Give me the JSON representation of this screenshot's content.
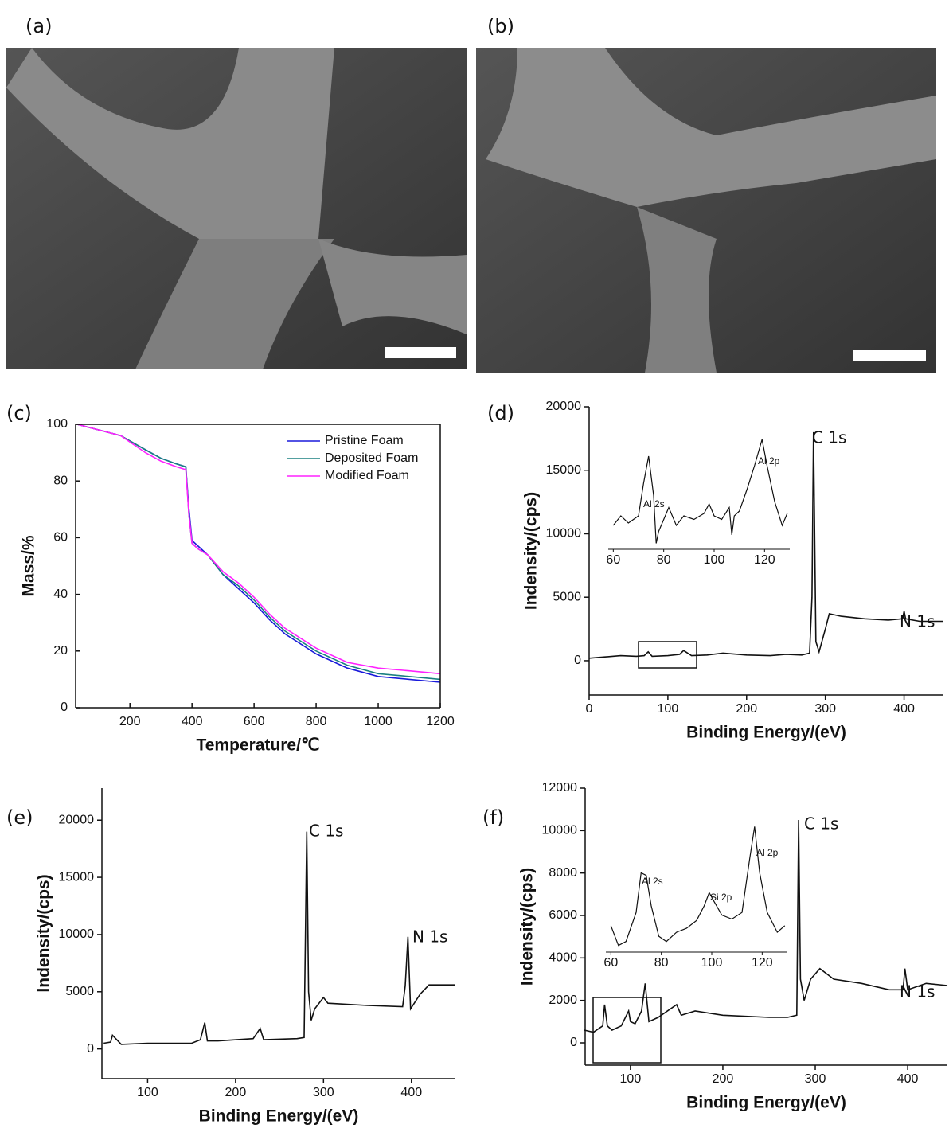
{
  "images": [
    {
      "label": "(a)"
    },
    {
      "label": "(b)"
    }
  ],
  "chart_data": [
    {
      "type": "line",
      "label": "(c)",
      "xlabel": "Temperature/℃",
      "ylabel": "Mass/%",
      "xlim": [
        25,
        1200
      ],
      "xticks": [
        200,
        400,
        600,
        800,
        1000,
        1200
      ],
      "ylim": [
        0,
        100
      ],
      "yticks": [
        0,
        20,
        40,
        60,
        80,
        100
      ],
      "legend": "upper right",
      "x": [
        30,
        100,
        170,
        250,
        300,
        350,
        380,
        390,
        400,
        420,
        450,
        500,
        550,
        600,
        650,
        700,
        800,
        900,
        1000,
        1100,
        1200
      ],
      "series": [
        {
          "name": "Pristine Foam",
          "color": "#1a1adb",
          "values": [
            100,
            98,
            96,
            91,
            88,
            86,
            85,
            70,
            59,
            57,
            54,
            47,
            42,
            37,
            31,
            26,
            19,
            14,
            11,
            10,
            9
          ]
        },
        {
          "name": "Deposited Foam",
          "color": "#1a8080",
          "values": [
            100,
            98,
            96,
            91,
            88,
            86,
            85,
            68,
            58,
            56,
            54,
            47,
            43,
            38,
            32,
            27,
            20,
            15,
            12,
            11,
            10
          ]
        },
        {
          "name": "Modified Foam",
          "color": "#ff22ff",
          "values": [
            100,
            98,
            96,
            90,
            87,
            85,
            84,
            68,
            58,
            56,
            54,
            48,
            44,
            39,
            33,
            28,
            21,
            16,
            14,
            13,
            12
          ]
        }
      ]
    },
    {
      "type": "line",
      "label": "(d)",
      "xlabel": "Binding Energy/(eV)",
      "ylabel": "Indensity/(cps)",
      "xlim": [
        0,
        450
      ],
      "xticks": [
        0,
        100,
        200,
        300,
        400
      ],
      "ylim": [
        -2700,
        20000
      ],
      "yticks": [
        0,
        5000,
        10000,
        15000,
        20000
      ],
      "annotations": [
        "C 1s",
        "N 1s"
      ],
      "x": [
        0,
        20,
        40,
        60,
        70,
        75,
        80,
        100,
        115,
        120,
        130,
        150,
        170,
        200,
        230,
        250,
        270,
        280,
        283,
        285,
        288,
        292,
        300,
        305,
        320,
        350,
        380,
        398,
        400,
        402,
        420,
        450
      ],
      "series": [
        {
          "color": "#111111",
          "values": [
            200,
            300,
            400,
            350,
            400,
            700,
            350,
            400,
            500,
            800,
            400,
            450,
            600,
            450,
            400,
            500,
            450,
            600,
            5000,
            18000,
            1500,
            700,
            2500,
            3700,
            3500,
            3300,
            3200,
            3300,
            3900,
            3300,
            3100,
            3100
          ]
        }
      ],
      "inset": {
        "type": "line",
        "xlim": [
          58,
          130
        ],
        "xticks": [
          60,
          80,
          100,
          120
        ],
        "ylim": [
          0,
          100
        ],
        "annotations": [
          "Al 2s",
          "Al 2p"
        ],
        "x": [
          60,
          63,
          66,
          70,
          72,
          74,
          76,
          77,
          78,
          80,
          82,
          85,
          88,
          92,
          96,
          98,
          100,
          103,
          106,
          107,
          108,
          110,
          113,
          116,
          119,
          121,
          124,
          127,
          129
        ],
        "series": [
          {
            "color": "#111111",
            "values": [
              20,
              28,
              22,
              28,
              55,
              78,
              45,
              5,
              15,
              25,
              35,
              20,
              28,
              25,
              30,
              38,
              28,
              25,
              35,
              12,
              28,
              32,
              50,
              70,
              92,
              70,
              40,
              20,
              30
            ]
          }
        ]
      }
    },
    {
      "type": "line",
      "label": "(e)",
      "xlabel": "Binding Energy/(eV)",
      "ylabel": "Indensity/(cps)",
      "xlim": [
        48,
        450
      ],
      "xticks": [
        100,
        200,
        300,
        400
      ],
      "ylim": [
        -2600,
        22800
      ],
      "yticks": [
        0,
        5000,
        10000,
        15000,
        20000
      ],
      "annotations": [
        "C 1s",
        "N 1s"
      ],
      "x": [
        50,
        58,
        60,
        70,
        100,
        150,
        160,
        165,
        168,
        180,
        220,
        228,
        232,
        270,
        278,
        281,
        283,
        286,
        290,
        300,
        305,
        350,
        390,
        393,
        396,
        399,
        410,
        420,
        450
      ],
      "series": [
        {
          "color": "#111111",
          "values": [
            500,
            600,
            1200,
            400,
            500,
            500,
            800,
            2300,
            700,
            700,
            900,
            1800,
            800,
            900,
            1000,
            19000,
            5000,
            2500,
            3500,
            4500,
            4000,
            3800,
            3700,
            5500,
            9800,
            3500,
            4800,
            5600,
            5600
          ]
        }
      ]
    },
    {
      "type": "line",
      "label": "(f)",
      "xlabel": "Binding Energy/(eV)",
      "ylabel": "Indensity/(cps)",
      "xlim": [
        51,
        443
      ],
      "xticks": [
        100,
        200,
        300,
        400
      ],
      "ylim": [
        -1050,
        12000
      ],
      "yticks": [
        0,
        2000,
        4000,
        6000,
        8000,
        10000,
        12000
      ],
      "annotations": [
        "C 1s",
        "N 1s"
      ],
      "x": [
        50,
        60,
        70,
        72,
        75,
        80,
        90,
        98,
        100,
        105,
        112,
        116,
        120,
        130,
        150,
        155,
        170,
        200,
        250,
        270,
        280,
        282,
        284,
        288,
        295,
        305,
        320,
        350,
        380,
        395,
        397,
        400,
        420,
        443
      ],
      "series": [
        {
          "color": "#111111",
          "values": [
            600,
            500,
            800,
            1800,
            800,
            600,
            800,
            1500,
            1000,
            900,
            1500,
            2800,
            1000,
            1200,
            1800,
            1300,
            1500,
            1300,
            1200,
            1200,
            1300,
            10500,
            3000,
            2000,
            3000,
            3500,
            3000,
            2800,
            2500,
            2500,
            3500,
            2500,
            2800,
            2700
          ]
        }
      ],
      "inset": {
        "type": "line",
        "xlim": [
          58,
          130
        ],
        "xticks": [
          60,
          80,
          100,
          120
        ],
        "ylim": [
          0,
          100
        ],
        "annotations": [
          "Al 2s",
          "Si 2p",
          "Al 2p"
        ],
        "x": [
          60,
          63,
          66,
          70,
          72,
          74,
          76,
          79,
          82,
          86,
          90,
          94,
          97,
          99,
          101,
          104,
          108,
          112,
          115,
          117,
          119,
          122,
          126,
          129
        ],
        "series": [
          {
            "color": "#111111",
            "values": [
              20,
              5,
              8,
              30,
              60,
              58,
              35,
              12,
              8,
              15,
              18,
              24,
              35,
              45,
              38,
              28,
              25,
              30,
              70,
              95,
              60,
              30,
              15,
              20
            ]
          }
        ]
      }
    }
  ]
}
